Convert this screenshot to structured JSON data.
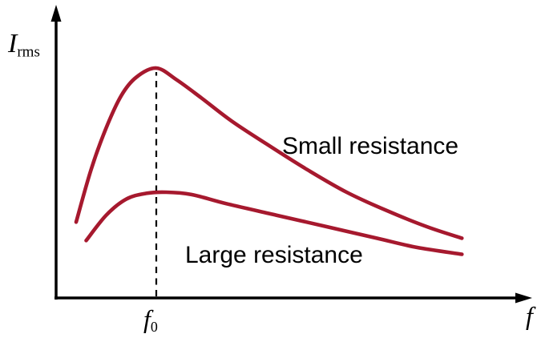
{
  "figure": {
    "labels": {
      "y_axis_main": "I",
      "y_axis_sub": "rms",
      "x_axis": "f",
      "resonance_main": "f",
      "resonance_sub": "0"
    }
  },
  "colors": {
    "curve": "#a6192e",
    "axis": "#000000",
    "text": "#000000",
    "background": "#ffffff"
  },
  "chart_data": {
    "type": "line",
    "title": "",
    "xlabel": "f",
    "ylabel": "I rms",
    "x_unit": "frequency normalized to resonant frequency f0 (axes carry no numeric ticks)",
    "y_unit": "rms current normalized to small-resistance peak (axes carry no numeric ticks)",
    "xlim": [
      0,
      4.7
    ],
    "ylim": [
      0,
      1.25
    ],
    "grid": false,
    "legend_position": "inline-annotations",
    "annotations": [
      {
        "label": "f0",
        "type": "vertical-dashed-line",
        "x": 1.0,
        "y_top": 1.0
      }
    ],
    "series": [
      {
        "name": "Small resistance",
        "points": [
          [
            0.2,
            0.33
          ],
          [
            0.35,
            0.56
          ],
          [
            0.5,
            0.74
          ],
          [
            0.65,
            0.88
          ],
          [
            0.8,
            0.96
          ],
          [
            1.0,
            1.0
          ],
          [
            1.2,
            0.95
          ],
          [
            1.45,
            0.87
          ],
          [
            1.75,
            0.77
          ],
          [
            2.1,
            0.67
          ],
          [
            2.5,
            0.56
          ],
          [
            2.9,
            0.46
          ],
          [
            3.3,
            0.38
          ],
          [
            3.7,
            0.31
          ],
          [
            4.05,
            0.26
          ]
        ]
      },
      {
        "name": "Large resistance",
        "points": [
          [
            0.3,
            0.25
          ],
          [
            0.5,
            0.36
          ],
          [
            0.7,
            0.43
          ],
          [
            0.9,
            0.455
          ],
          [
            1.1,
            0.46
          ],
          [
            1.35,
            0.45
          ],
          [
            1.7,
            0.41
          ],
          [
            2.2,
            0.36
          ],
          [
            2.7,
            0.31
          ],
          [
            3.2,
            0.26
          ],
          [
            3.6,
            0.22
          ],
          [
            4.05,
            0.19
          ]
        ]
      }
    ]
  }
}
